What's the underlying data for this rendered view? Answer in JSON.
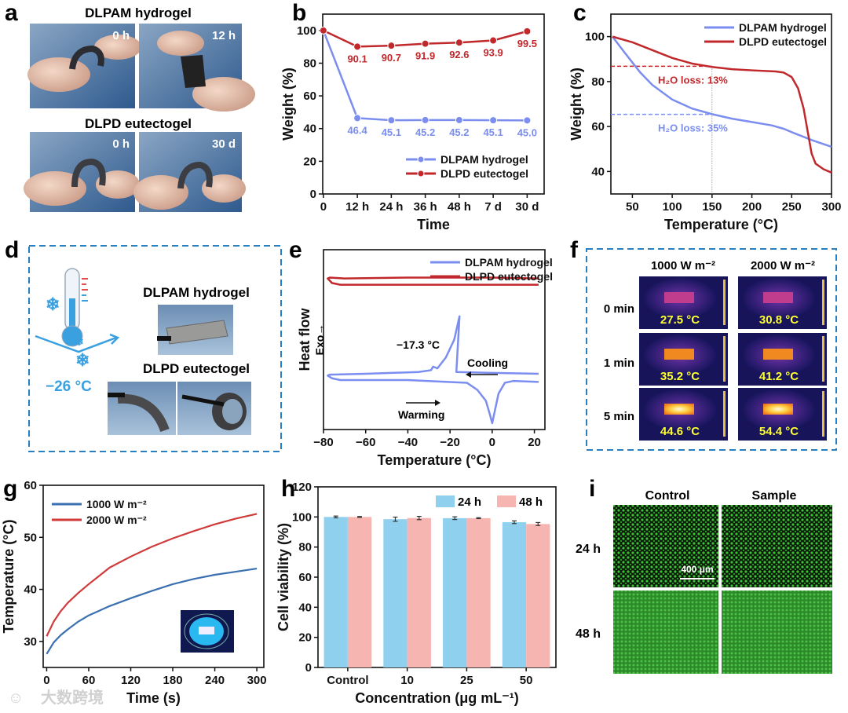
{
  "panel_labels": [
    "a",
    "b",
    "c",
    "d",
    "e",
    "f",
    "g",
    "h",
    "i"
  ],
  "panel_a": {
    "titles": [
      "DLPAM hydrogel",
      "DLPD eutectogel"
    ],
    "photo_labels": [
      "0 h",
      "12 h",
      "0 h",
      "30 d"
    ]
  },
  "panel_d": {
    "temperature": "−26 °C",
    "labels": [
      "DLPAM hydrogel",
      "DLPD eutectogel"
    ]
  },
  "panel_f": {
    "columns": [
      "1000 W m⁻²",
      "2000 W m⁻²"
    ],
    "rows": [
      "0 min",
      "1 min",
      "5 min"
    ],
    "temps": [
      [
        "27.5 °C",
        "30.8 °C"
      ],
      [
        "35.2 °C",
        "41.2 °C"
      ],
      [
        "44.6 °C",
        "54.4 °C"
      ]
    ]
  },
  "panel_i": {
    "columns": [
      "Control",
      "Sample"
    ],
    "rows": [
      "24 h",
      "48 h"
    ],
    "scale_bar": "400 μm"
  },
  "watermark": "大数跨境",
  "colors": {
    "blue": "#7b8ef0",
    "red": "#c0282c",
    "g_blue": "#3a6fb0",
    "g_red": "#d03a3a",
    "bar_blue": "#8fd0ef",
    "bar_pink": "#f7b5b1",
    "box_dash": "#2a7fc0"
  },
  "chart_data": [
    {
      "id": "b",
      "type": "line",
      "categories": [
        "0",
        "12 h",
        "24 h",
        "36 h",
        "48 h",
        "7 d",
        "30 d"
      ],
      "xlabel": "Time",
      "ylabel": "Weight (%)",
      "ylim": [
        0,
        110
      ],
      "yticks": [
        0,
        20,
        40,
        60,
        80,
        100
      ],
      "legend": "bottom-right",
      "series": [
        {
          "name": "DLPAM hydrogel",
          "color": "#7b8ef0",
          "values": [
            100,
            46.4,
            45.1,
            45.2,
            45.2,
            45.1,
            45.0
          ],
          "labels": [
            "",
            "46.4",
            "45.1",
            "45.2",
            "45.2",
            "45.1",
            "45.0"
          ]
        },
        {
          "name": "DLPD eutectogel",
          "color": "#c0282c",
          "values": [
            100,
            90.1,
            90.7,
            91.9,
            92.6,
            93.9,
            99.5
          ],
          "errors": [
            0,
            0.8,
            0.8,
            1.8,
            1.8,
            1,
            0.8
          ],
          "labels": [
            "",
            "90.1",
            "90.7",
            "91.9",
            "92.6",
            "93.9",
            "99.5"
          ]
        }
      ]
    },
    {
      "id": "c",
      "type": "line",
      "xlabel": "Temperature (°C)",
      "ylabel": "Weight (%)",
      "xlim": [
        23,
        300
      ],
      "ylim": [
        30,
        110
      ],
      "xticks": [
        50,
        100,
        150,
        200,
        250,
        300
      ],
      "yticks": [
        40,
        60,
        80,
        100
      ],
      "legend": "top-right",
      "series": [
        {
          "name": "DLPAM hydrogel",
          "color": "#7b8ef0",
          "x": [
            25,
            40,
            50,
            60,
            75,
            100,
            125,
            150,
            175,
            200,
            225,
            240,
            250,
            275,
            300
          ],
          "y": [
            100,
            93,
            88.5,
            84,
            78.5,
            72,
            68,
            65.5,
            63.5,
            62,
            60.5,
            59,
            57.5,
            54,
            51
          ]
        },
        {
          "name": "DLPD eutectogel",
          "color": "#c0282c",
          "x": [
            25,
            50,
            75,
            100,
            125,
            150,
            175,
            200,
            230,
            240,
            250,
            258,
            265,
            270,
            275,
            280,
            290,
            300
          ],
          "y": [
            100,
            97.5,
            94,
            90.5,
            88,
            86.5,
            85.5,
            85,
            84.5,
            84,
            82,
            77,
            68,
            58,
            48,
            43.5,
            41,
            39.5
          ]
        }
      ],
      "annotations": [
        {
          "text": "H₂O loss: 13%",
          "y": 86.8,
          "color": "#c0282c"
        },
        {
          "text": "H₂O loss: 35%",
          "y": 65.4,
          "color": "#7b8ef0"
        }
      ],
      "marker_x": 150
    },
    {
      "id": "e",
      "type": "line",
      "xlabel": "Temperature (°C)",
      "ylabel": "Heat flow",
      "ylabel2": "Exo→",
      "xlim": [
        -80,
        25
      ],
      "ylim": [
        0,
        10
      ],
      "xticks": [
        -80,
        -60,
        -40,
        -20,
        0,
        20
      ],
      "legend": "top-right",
      "series": [
        {
          "name": "DLPAM hydrogel",
          "color": "#7b8ef0",
          "x": [
            22,
            0,
            -17,
            -17,
            -15.5,
            -18,
            -22,
            -26,
            -28,
            -29,
            -35,
            -60,
            -77,
            -78,
            -76,
            -72,
            -40,
            -12,
            -7,
            -3,
            -1,
            0,
            1,
            3,
            6,
            10,
            22
          ],
          "y": [
            3.1,
            3.15,
            3.2,
            3.2,
            6.3,
            5.0,
            4.0,
            3.4,
            3.5,
            3.3,
            3.2,
            3.1,
            3.05,
            3.0,
            2.85,
            2.75,
            2.75,
            2.6,
            2.2,
            1.6,
            0.8,
            0.35,
            0.9,
            2.0,
            2.6,
            2.7,
            2.65
          ]
        },
        {
          "name": "DLPD eutectogel",
          "color": "#c0282c",
          "x": [
            22,
            0,
            -40,
            -70,
            -77,
            -78,
            -76,
            -72,
            -40,
            0,
            22
          ],
          "y": [
            8.4,
            8.45,
            8.45,
            8.4,
            8.45,
            8.4,
            8.15,
            8.05,
            8.05,
            8.05,
            8.05
          ]
        }
      ],
      "annotations": [
        {
          "text": "−17.3 °C"
        },
        {
          "text": "Cooling"
        },
        {
          "text": "Warming"
        }
      ]
    },
    {
      "id": "g",
      "type": "line",
      "xlabel": "Time (s)",
      "ylabel": "Temperature (°C)",
      "xlim": [
        -5,
        310
      ],
      "ylim": [
        25,
        60
      ],
      "xticks": [
        0,
        60,
        120,
        180,
        240,
        300
      ],
      "yticks": [
        30,
        40,
        50,
        60
      ],
      "legend": "top-left",
      "series": [
        {
          "name": "1000 W m⁻²",
          "color": "#3a6fb0",
          "x": [
            0,
            10,
            20,
            30,
            45,
            60,
            90,
            120,
            150,
            180,
            210,
            240,
            270,
            300
          ],
          "y": [
            27.6,
            29.8,
            31.2,
            32.3,
            33.8,
            35.0,
            36.8,
            38.3,
            39.7,
            41.0,
            42.0,
            42.8,
            43.4,
            44.0
          ]
        },
        {
          "name": "2000 W m⁻²",
          "color": "#d03a3a",
          "x": [
            0,
            10,
            20,
            30,
            45,
            60,
            90,
            120,
            150,
            180,
            210,
            240,
            270,
            300
          ],
          "y": [
            31.0,
            33.8,
            35.8,
            37.4,
            39.3,
            41.0,
            44.2,
            46.3,
            48.2,
            49.8,
            51.2,
            52.5,
            53.6,
            54.5
          ]
        }
      ]
    },
    {
      "id": "h",
      "type": "bar",
      "categories": [
        "Control",
        "10",
        "25",
        "50"
      ],
      "xlabel": "Concentration (μg mL⁻¹)",
      "ylabel": "Cell viability (%)",
      "ylim": [
        0,
        120
      ],
      "yticks": [
        0,
        20,
        40,
        60,
        80,
        100,
        120
      ],
      "legend": "top-right",
      "series": [
        {
          "name": "24 h",
          "color": "#8fd0ef",
          "values": [
            100,
            98.5,
            99.2,
            96.5
          ],
          "errors": [
            0.6,
            1.4,
            0.9,
            0.9
          ]
        },
        {
          "name": "48 h",
          "color": "#f7b5b1",
          "values": [
            100,
            99.3,
            99.2,
            95.3
          ],
          "errors": [
            0.3,
            1.1,
            0.3,
            1.0
          ]
        }
      ]
    }
  ]
}
